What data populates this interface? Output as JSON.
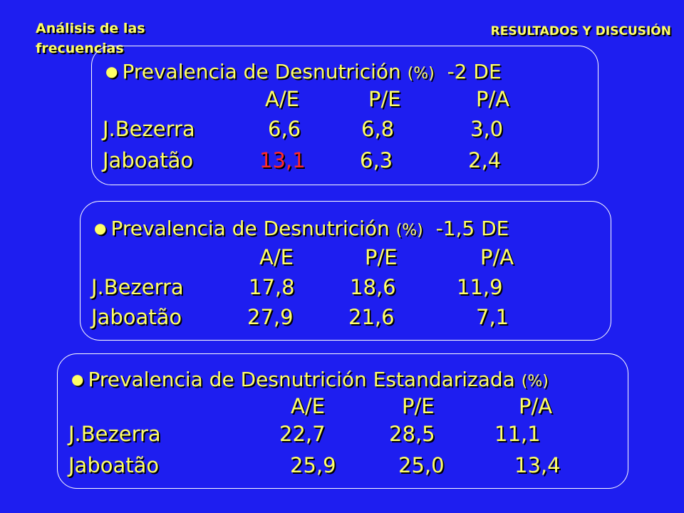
{
  "header": {
    "section": "Análisis de las frecuencias",
    "chapter": "RESULTADOS Y DISCUSIÓN"
  },
  "colors": {
    "background": "#1e1ef0",
    "text": "#ffff66",
    "highlight": "#ff2a2a",
    "border": "#ffffff"
  },
  "panels": [
    {
      "title": "Prevalencia de Desnutrición",
      "unit": "(%)",
      "threshold": "-2 DE",
      "columns": [
        "A/E",
        "P/E",
        "P/A"
      ],
      "rows": [
        {
          "label": "J.Bezerra",
          "values": [
            "6,6",
            "6,8",
            "3,0"
          ]
        },
        {
          "label": "Jaboatão",
          "values": [
            "13,1",
            "6,3",
            "2,4"
          ]
        }
      ]
    },
    {
      "title": "Prevalencia de Desnutrición",
      "unit": "(%)",
      "threshold": "-1,5 DE",
      "columns": [
        "A/E",
        "P/E",
        "P/A"
      ],
      "rows": [
        {
          "label": "J.Bezerra",
          "values": [
            "17,8",
            "18,6",
            "11,9"
          ]
        },
        {
          "label": "Jaboatão",
          "values": [
            "27,9",
            "21,6",
            "7,1"
          ]
        }
      ]
    },
    {
      "title": "Prevalencia de Desnutrición Estandarizada",
      "unit": "(%)",
      "threshold": "",
      "columns": [
        "A/E",
        "P/E",
        "P/A"
      ],
      "rows": [
        {
          "label": "J.Bezerra",
          "values": [
            "22,7",
            "28,5",
            "11,1"
          ]
        },
        {
          "label": "Jaboatão",
          "values": [
            "25,9",
            "25,0",
            "13,4"
          ]
        }
      ]
    }
  ]
}
